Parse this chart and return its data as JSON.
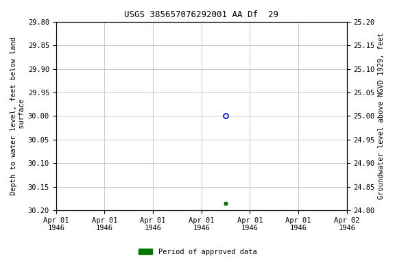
{
  "title": "USGS 385657076292001 AA Df  29",
  "ylabel_left": "Depth to water level, feet below land\n surface",
  "ylabel_right": "Groundwater level above NGVD 1929, feet",
  "ylim_left_top": 29.8,
  "ylim_left_bottom": 30.2,
  "ylim_right_top": 25.2,
  "ylim_right_bottom": 24.8,
  "yticks_left": [
    29.8,
    29.85,
    29.9,
    29.95,
    30.0,
    30.05,
    30.1,
    30.15,
    30.2
  ],
  "yticks_right": [
    25.2,
    25.15,
    25.1,
    25.05,
    25.0,
    24.95,
    24.9,
    24.85,
    24.8
  ],
  "xtick_positions": [
    0,
    1,
    2,
    3,
    4,
    5,
    6
  ],
  "xtick_labels": [
    "Apr 01\n1946",
    "Apr 01\n1946",
    "Apr 01\n1946",
    "Apr 01\n1946",
    "Apr 01\n1946",
    "Apr 01\n1946",
    "Apr 02\n1946"
  ],
  "x_start": 0.0,
  "x_end": 6.0,
  "data_point_open_x": 3.5,
  "data_point_open_y": 30.0,
  "data_point_filled_x": 3.5,
  "data_point_filled_y": 30.185,
  "open_marker_color": "#0000cc",
  "filled_marker_color": "#007700",
  "background_color": "#ffffff",
  "grid_color": "#c8c8c8",
  "legend_label": "Period of approved data",
  "legend_color": "#007700",
  "title_fontsize": 9,
  "axis_label_fontsize": 7.5,
  "tick_fontsize": 7.5
}
